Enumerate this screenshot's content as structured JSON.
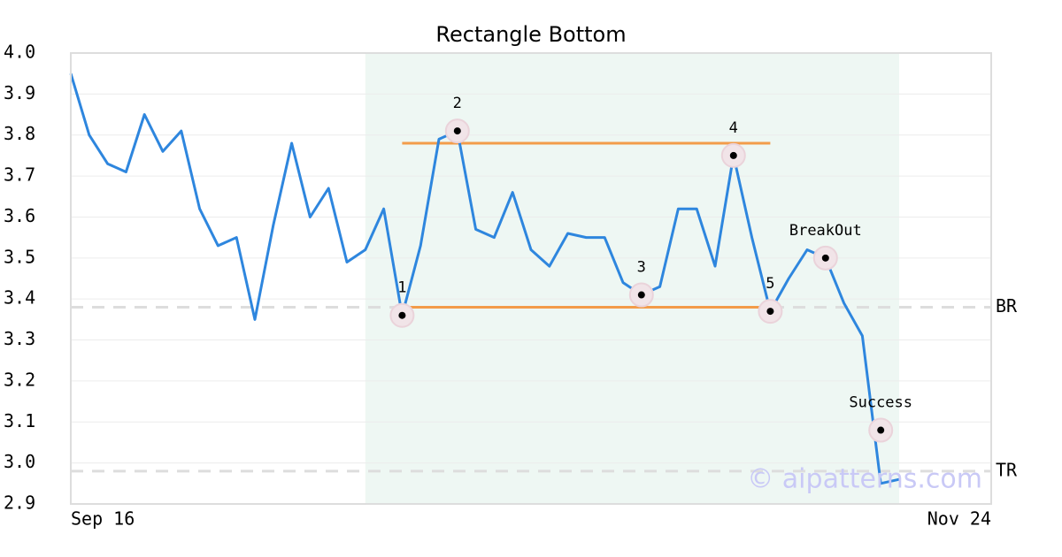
{
  "chart_data": {
    "type": "line",
    "title": "Rectangle Bottom",
    "categories": [
      "Sep 16",
      null,
      null,
      null,
      null,
      null,
      null,
      null,
      null,
      null,
      null,
      null,
      null,
      null,
      null,
      null,
      null,
      null,
      null,
      null,
      null,
      null,
      null,
      null,
      null,
      null,
      null,
      null,
      null,
      null,
      null,
      null,
      null,
      null,
      null,
      null,
      null,
      null,
      null,
      null,
      null,
      null,
      null,
      null,
      null,
      null,
      null,
      null,
      null,
      null,
      "Nov 24"
    ],
    "values": [
      3.95,
      3.8,
      3.73,
      3.71,
      3.85,
      3.76,
      3.81,
      3.62,
      3.53,
      3.55,
      3.35,
      3.58,
      3.78,
      3.6,
      3.67,
      3.49,
      3.52,
      3.62,
      3.36,
      3.53,
      3.79,
      3.81,
      3.57,
      3.55,
      3.66,
      3.52,
      3.48,
      3.56,
      3.55,
      3.55,
      3.44,
      3.41,
      3.43,
      3.62,
      3.62,
      3.48,
      3.75,
      3.55,
      3.37,
      3.45,
      3.52,
      3.5,
      3.39,
      3.31,
      2.95,
      2.96,
      null,
      null,
      null,
      null,
      null
    ],
    "color": "#2e86de",
    "ylim": [
      2.9,
      4.0
    ],
    "yticks": [
      {
        "value": 2.9,
        "label": "2.9"
      },
      {
        "value": 3,
        "label": "3.0"
      },
      3.1,
      3.2,
      3.3,
      3.4,
      3.5,
      3.6,
      3.7,
      3.8,
      3.9,
      {
        "value": 4,
        "label": "4.0"
      }
    ],
    "grid": true,
    "highlight": {
      "from": 16,
      "to": 45,
      "color": "#eef7f3"
    },
    "pattern_lines": [
      {
        "value": 3.78,
        "from": 18,
        "to": 38
      },
      {
        "value": 3.38,
        "from": 18,
        "to": 38
      }
    ],
    "pattern_color": "#f39c4a",
    "levels": [
      {
        "label": "BR",
        "value": 3.38
      },
      {
        "label": "TR",
        "value": 2.98
      }
    ],
    "annotations": [
      {
        "label": "1",
        "x": 18,
        "value": 3.36
      },
      {
        "label": "2",
        "x": 21,
        "value": 3.81
      },
      {
        "label": "3",
        "x": 31,
        "value": 3.41
      },
      {
        "label": "4",
        "x": 36,
        "value": 3.75
      },
      {
        "label": "5",
        "x": 38,
        "value": 3.37
      },
      {
        "label": "BreakOut",
        "x": 41,
        "value": 3.5
      },
      {
        "label": "Success",
        "x": 44,
        "value": 3.08
      }
    ],
    "watermark": "© aipatterns.com"
  }
}
